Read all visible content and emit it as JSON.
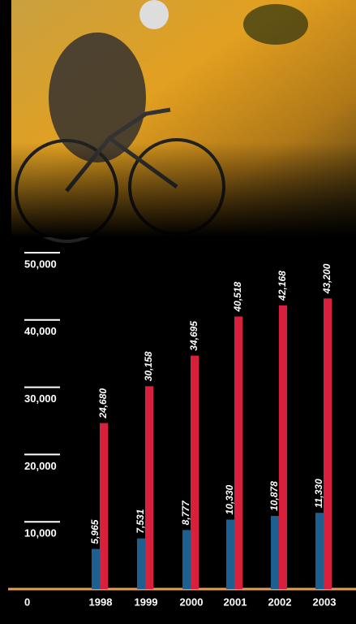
{
  "chart_data": {
    "type": "bar",
    "categories": [
      "1998",
      "1999",
      "2000",
      "2001",
      "2002",
      "2003"
    ],
    "series": [
      {
        "color": "#1d5f8f",
        "values": [
          5965,
          7531,
          8777,
          10330,
          10878,
          11330
        ],
        "value_labels": [
          "5,965",
          "7,531",
          "8,777",
          "10,330",
          "10,878",
          "11,330"
        ]
      },
      {
        "color": "#d81f3c",
        "values": [
          24680,
          30158,
          34695,
          40518,
          42168,
          43200
        ],
        "value_labels": [
          "24,680",
          "30,158",
          "34,695",
          "40,518",
          "42,168",
          "43,200"
        ]
      }
    ],
    "ylim": [
      0,
      50000
    ],
    "yticks": [
      0,
      {
        "value": 10000,
        "label": "10,000"
      },
      {
        "value": 20000,
        "label": "20,000"
      },
      {
        "value": 30000,
        "label": "30,000"
      },
      {
        "value": 40000,
        "label": "40,000"
      },
      {
        "value": 50000,
        "label": "50,000"
      }
    ],
    "baseline_color": "#e8a050"
  }
}
